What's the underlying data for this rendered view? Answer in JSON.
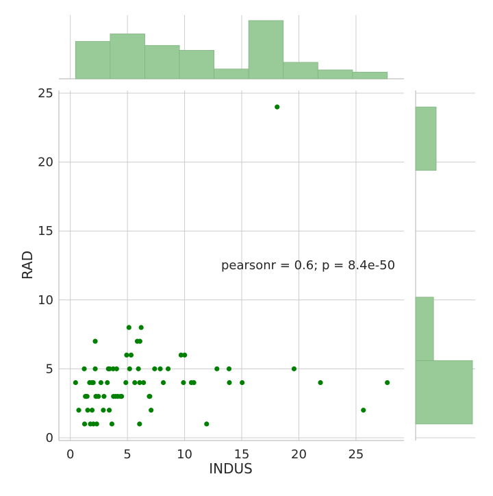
{
  "chart_data": {
    "type": "scatter",
    "title": "",
    "xlabel": "INDUS",
    "ylabel": "RAD",
    "xlim": [
      -1,
      29.2
    ],
    "ylim": [
      -0.2,
      25.2
    ],
    "xticks": [
      0,
      5,
      10,
      15,
      20,
      25
    ],
    "yticks": [
      0,
      5,
      10,
      15,
      20,
      25
    ],
    "grid": true,
    "point_color": "#008000",
    "hist_color": "#98cb98",
    "annotation": "pearsonr = 0.6; p = 8.4e-50",
    "points": [
      [
        0.46,
        4
      ],
      [
        0.74,
        2
      ],
      [
        1.22,
        5
      ],
      [
        1.25,
        1
      ],
      [
        1.32,
        3
      ],
      [
        1.38,
        3
      ],
      [
        1.47,
        3
      ],
      [
        1.52,
        2
      ],
      [
        1.69,
        4
      ],
      [
        1.76,
        1
      ],
      [
        1.89,
        4
      ],
      [
        1.91,
        2
      ],
      [
        2.01,
        4
      ],
      [
        2.02,
        1
      ],
      [
        2.18,
        7
      ],
      [
        2.18,
        5
      ],
      [
        2.24,
        3
      ],
      [
        2.25,
        3
      ],
      [
        2.31,
        1
      ],
      [
        2.46,
        3
      ],
      [
        2.68,
        4
      ],
      [
        2.89,
        2
      ],
      [
        2.95,
        3
      ],
      [
        3.24,
        4
      ],
      [
        3.33,
        5
      ],
      [
        3.44,
        5
      ],
      [
        3.41,
        2
      ],
      [
        3.64,
        1
      ],
      [
        3.75,
        5
      ],
      [
        3.78,
        3
      ],
      [
        3.97,
        3
      ],
      [
        4.05,
        5
      ],
      [
        4.15,
        3
      ],
      [
        4.39,
        3
      ],
      [
        4.49,
        3
      ],
      [
        4.86,
        4
      ],
      [
        4.93,
        6
      ],
      [
        5.13,
        8
      ],
      [
        5.19,
        5
      ],
      [
        5.32,
        6
      ],
      [
        5.64,
        4
      ],
      [
        5.86,
        7
      ],
      [
        5.96,
        5
      ],
      [
        6.06,
        1
      ],
      [
        6.07,
        4
      ],
      [
        6.09,
        7
      ],
      [
        6.2,
        8
      ],
      [
        6.41,
        4
      ],
      [
        6.91,
        3
      ],
      [
        6.96,
        3
      ],
      [
        7.07,
        2
      ],
      [
        7.38,
        5
      ],
      [
        7.87,
        5
      ],
      [
        8.14,
        4
      ],
      [
        8.56,
        5
      ],
      [
        9.69,
        6
      ],
      [
        9.9,
        4
      ],
      [
        10.01,
        6
      ],
      [
        10.59,
        4
      ],
      [
        10.81,
        4
      ],
      [
        11.93,
        1
      ],
      [
        12.83,
        5
      ],
      [
        13.89,
        5
      ],
      [
        13.92,
        4
      ],
      [
        15.04,
        4
      ],
      [
        18.1,
        24
      ],
      [
        19.58,
        5
      ],
      [
        21.89,
        4
      ],
      [
        25.65,
        2
      ],
      [
        27.74,
        4
      ]
    ],
    "x_hist": {
      "bins": [
        0.46,
        3.49,
        6.52,
        9.55,
        12.58,
        15.61,
        18.64,
        21.67,
        24.7,
        27.74
      ],
      "counts": [
        84,
        101,
        75,
        64,
        22,
        131,
        37,
        20,
        15
      ]
    },
    "y_hist": {
      "bins": [
        1,
        5.6,
        10.2,
        14.8,
        19.4,
        24
      ],
      "counts": [
        365,
        115,
        0,
        0,
        132
      ]
    }
  }
}
